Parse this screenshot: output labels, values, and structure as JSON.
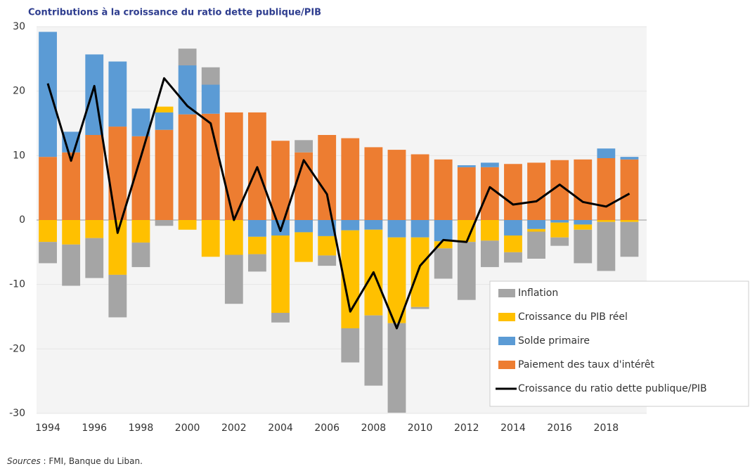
{
  "chart_data": {
    "type": "bar",
    "stacked": true,
    "title": "Contributions à la croissance du ratio dette publique/PIB",
    "source_label": "Sources",
    "source_text": " : FMI, Banque du Liban.",
    "categories": [
      "1994",
      null,
      "1996",
      null,
      "1998",
      null,
      "2000",
      null,
      "2002",
      null,
      "2004",
      null,
      "2006",
      null,
      "2008",
      null,
      "2010",
      null,
      "2012",
      null,
      "2014",
      null,
      "2016",
      null,
      "2018",
      null
    ],
    "ylim": [
      -30,
      30
    ],
    "yticks": [
      -30,
      -20,
      -10,
      0,
      10,
      20,
      30
    ],
    "grid": true,
    "legend": "lower right",
    "series": [
      {
        "name": "Inflation",
        "type": "bar",
        "color": "#a5a5a5",
        "values": [
          -3.3,
          -6.4,
          -6.2,
          -6.6,
          -3.8,
          -0.9,
          2.6,
          2.7,
          -7.6,
          -2.7,
          -1.5,
          1.9,
          -1.6,
          -5.3,
          -10.9,
          -13.9,
          -0.3,
          -4.7,
          -9,
          -4.1,
          -1.6,
          -4.2,
          -1.3,
          -5.2,
          -7.6,
          -5.4
        ]
      },
      {
        "name": "Croissance du PIB réel",
        "type": "bar",
        "color": "#ffc000",
        "values": [
          -3.4,
          -3.8,
          -2.8,
          -8.5,
          -3.5,
          0.9,
          -1.5,
          -5.7,
          -5.4,
          -2.7,
          -12,
          -4.6,
          -3,
          -15.2,
          -13.3,
          -13.3,
          -10.8,
          -1.1,
          -3.4,
          -3.2,
          -2.6,
          -0.4,
          -2.3,
          -0.8,
          -0.3,
          -0.3
        ]
      },
      {
        "name": "Solde primaire",
        "type": "bar",
        "color": "#5b9bd5",
        "values": [
          19.4,
          3.2,
          12.5,
          10.1,
          4.3,
          2.7,
          7.6,
          4.5,
          0,
          -2.6,
          -2.4,
          -1.9,
          -2.5,
          -1.6,
          -1.5,
          -2.7,
          -2.7,
          -3.3,
          0.3,
          0.7,
          -2.4,
          -1.4,
          -0.4,
          -0.7,
          1.5,
          0.4
        ]
      },
      {
        "name": "Paiement des taux d'intérêt",
        "type": "bar",
        "color": "#ed7d31",
        "values": [
          9.8,
          10.5,
          13.2,
          14.5,
          13,
          14,
          16.4,
          16.5,
          16.7,
          16.7,
          12.3,
          10.5,
          13.2,
          12.7,
          11.3,
          10.9,
          10.2,
          9.4,
          8.2,
          8.2,
          8.7,
          8.9,
          9.3,
          9.4,
          9.6,
          9.4
        ]
      },
      {
        "name": "Croissance du ratio dette publique/PIB",
        "type": "line",
        "color": "#000000",
        "values": [
          21.2,
          9.2,
          20.8,
          -2,
          9.8,
          22,
          17.7,
          15,
          0,
          8.2,
          -1.7,
          9.3,
          4,
          -14.2,
          -8.1,
          -16.8,
          -7.1,
          -3.1,
          -3.4,
          5.1,
          2.4,
          2.9,
          5.5,
          2.8,
          2.1,
          4.1
        ]
      }
    ]
  }
}
